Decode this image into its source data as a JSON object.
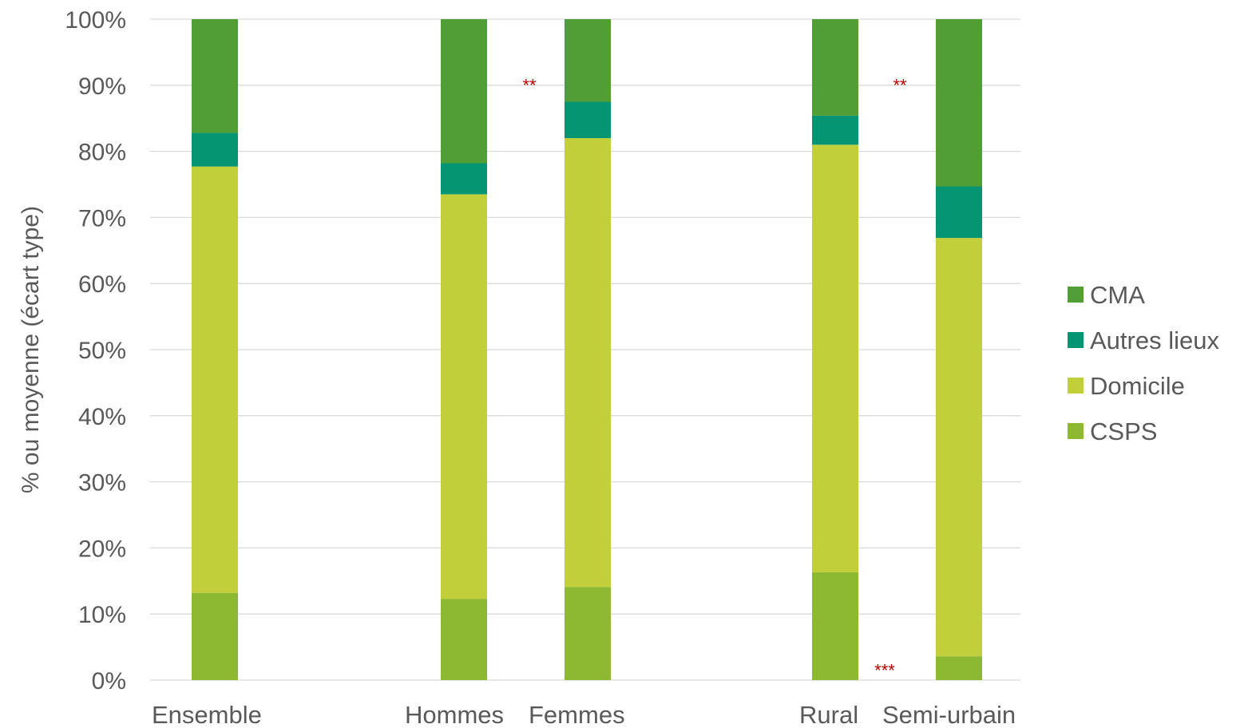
{
  "chart_data": {
    "type": "bar",
    "stacked": true,
    "percent_stacked": true,
    "ylabel": "% ou moyenne (écart type)",
    "ylim": [
      0,
      100
    ],
    "yticks": [
      "0%",
      "10%",
      "20%",
      "30%",
      "40%",
      "50%",
      "60%",
      "70%",
      "80%",
      "90%",
      "100%"
    ],
    "grid": true,
    "legend_position": "right",
    "categories": [
      "Ensemble",
      "Hommes",
      "Femmes",
      "Rural",
      "Semi-urbain"
    ],
    "series": [
      {
        "name": "CSPS",
        "color": "#8cb832",
        "values": [
          13.2,
          12.3,
          14.1,
          16.3,
          3.6
        ]
      },
      {
        "name": "Domicile",
        "color": "#c1cf3b",
        "values": [
          64.5,
          61.2,
          67.9,
          64.7,
          63.3
        ]
      },
      {
        "name": "Autres lieux",
        "color": "#069572",
        "values": [
          5.1,
          4.7,
          5.5,
          4.4,
          7.8
        ]
      },
      {
        "name": "CMA",
        "color": "#529e36",
        "values": [
          17.2,
          21.8,
          12.5,
          14.6,
          25.3
        ]
      }
    ],
    "legend_order": [
      "CMA",
      "Autres lieux",
      "Domicile",
      "CSPS"
    ],
    "annotations": [
      {
        "text": "**",
        "near": "Hommes-Femmes",
        "y": 90.5
      },
      {
        "text": "**",
        "near": "Rural-Semi-urbain",
        "y": 90.5
      },
      {
        "text": "***",
        "near": "Rural-Semi-urbain",
        "y": 2
      }
    ]
  }
}
